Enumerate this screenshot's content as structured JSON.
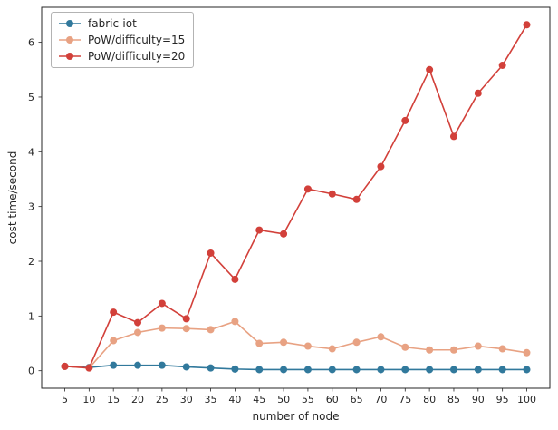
{
  "chart_data": {
    "type": "line",
    "title": "",
    "xlabel": "number of node",
    "ylabel": "cost time/second",
    "x": [
      5,
      10,
      15,
      20,
      25,
      30,
      35,
      40,
      45,
      50,
      55,
      60,
      65,
      70,
      75,
      80,
      85,
      90,
      95,
      100
    ],
    "yticks": [
      0,
      1,
      2,
      3,
      4,
      5,
      6
    ],
    "xlim": [
      0.25,
      104.75
    ],
    "ylim": [
      -0.32,
      6.64
    ],
    "grid": false,
    "legend_position": "upper left",
    "series": [
      {
        "name": "fabric-iot",
        "color": "#31799c",
        "values": [
          0.08,
          0.06,
          0.1,
          0.1,
          0.1,
          0.07,
          0.05,
          0.03,
          0.02,
          0.02,
          0.02,
          0.02,
          0.02,
          0.02,
          0.02,
          0.02,
          0.02,
          0.02,
          0.02,
          0.02
        ]
      },
      {
        "name": "PoW/difficulty=15",
        "color": "#e8a283",
        "values": [
          0.08,
          0.05,
          0.55,
          0.7,
          0.78,
          0.77,
          0.75,
          0.9,
          0.5,
          0.52,
          0.45,
          0.4,
          0.52,
          0.62,
          0.43,
          0.38,
          0.38,
          0.45,
          0.4,
          0.33
        ]
      },
      {
        "name": "PoW/difficulty=20",
        "color": "#d2403a",
        "values": [
          0.08,
          0.05,
          1.07,
          0.88,
          1.23,
          0.95,
          2.15,
          1.67,
          2.57,
          2.5,
          3.32,
          3.23,
          3.13,
          3.73,
          4.57,
          5.5,
          4.28,
          5.07,
          5.58,
          6.32
        ]
      }
    ]
  }
}
